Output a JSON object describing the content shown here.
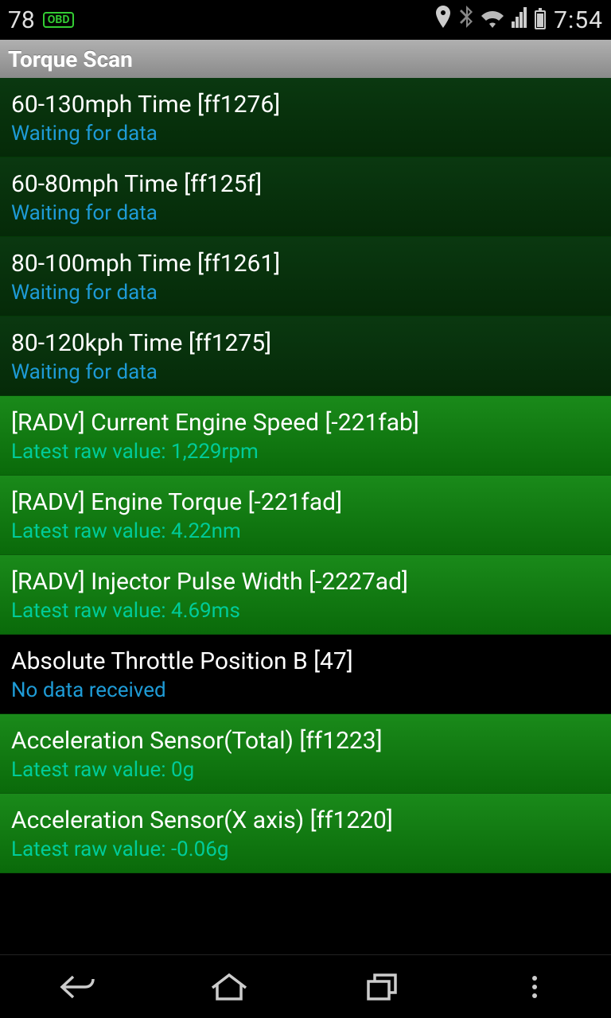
{
  "status_bar": {
    "left_value": "78",
    "obd_label": "OBD",
    "clock": "7:54"
  },
  "app_header": {
    "title": "Torque Scan"
  },
  "list_items": [
    {
      "title": "60-130mph Time [ff1276]",
      "status": "Waiting for data",
      "bg_type": "dark-green",
      "status_type": "waiting"
    },
    {
      "title": "60-80mph Time [ff125f]",
      "status": "Waiting for data",
      "bg_type": "dark-green",
      "status_type": "waiting"
    },
    {
      "title": "80-100mph Time [ff1261]",
      "status": "Waiting for data",
      "bg_type": "dark-green",
      "status_type": "waiting"
    },
    {
      "title": "80-120kph Time [ff1275]",
      "status": "Waiting for data",
      "bg_type": "dark-green",
      "status_type": "waiting"
    },
    {
      "title": "[RADV] Current Engine Speed [-221fab]",
      "status": "Latest raw value: 1,229rpm",
      "bg_type": "bright-green",
      "status_type": "latest"
    },
    {
      "title": "[RADV] Engine Torque [-221fad]",
      "status": "Latest raw value: 4.22nm",
      "bg_type": "bright-green",
      "status_type": "latest"
    },
    {
      "title": "[RADV] Injector Pulse Width [-2227ad]",
      "status": "Latest raw value: 4.69ms",
      "bg_type": "bright-green",
      "status_type": "latest"
    },
    {
      "title": "Absolute Throttle Position B [47]",
      "status": "No data received",
      "bg_type": "black-bg",
      "status_type": "nodata"
    },
    {
      "title": "Acceleration Sensor(Total) [ff1223]",
      "status": "Latest raw value: 0g",
      "bg_type": "bright-green",
      "status_type": "latest"
    },
    {
      "title": "Acceleration Sensor(X axis) [ff1220]",
      "status": "Latest raw value: -0.06g",
      "bg_type": "bright-green",
      "status_type": "latest"
    }
  ],
  "colors": {
    "status_bar_bg": "#000000",
    "header_bg_start": "#b0b0b0",
    "header_bg_end": "#8a8a8a",
    "dark_green_start": "#0a3810",
    "dark_green_end": "#052a08",
    "bright_green_start": "#1a8a1a",
    "bright_green_end": "#0a6a0a",
    "title_color": "#ffffff",
    "waiting_color": "#1e9bd6",
    "latest_color": "#00cc99",
    "nodata_color": "#1e9bd6",
    "nav_icon_color": "#cccccc"
  }
}
